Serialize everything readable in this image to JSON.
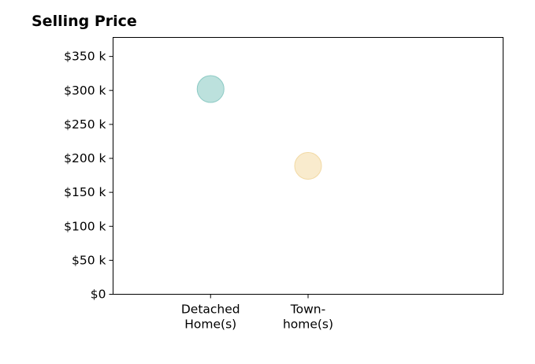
{
  "chart_data": {
    "type": "scatter",
    "title": "Selling Price",
    "categories": [
      "Detached Home(s)",
      "Town- home(s)"
    ],
    "category_label_lines": [
      [
        "Detached",
        "Home(s)"
      ],
      [
        "Town-",
        "home(s)"
      ]
    ],
    "values": [
      302000,
      189000
    ],
    "point_colors": [
      "#9fd4cf",
      "#f7e3b8"
    ],
    "point_stroke_colors": [
      "#8ccac4",
      "#f2d9a4"
    ],
    "xlabel": "",
    "ylabel": "",
    "ylim": [
      0,
      378000
    ],
    "yticks": [
      0,
      50000,
      100000,
      150000,
      200000,
      250000,
      300000,
      350000
    ],
    "ytick_labels": [
      "$0",
      "$50 k",
      "$100 k",
      "$150 k",
      "$200 k",
      "$250 k",
      "$300 k",
      "$350 k"
    ],
    "grid": false,
    "legend": "none"
  }
}
